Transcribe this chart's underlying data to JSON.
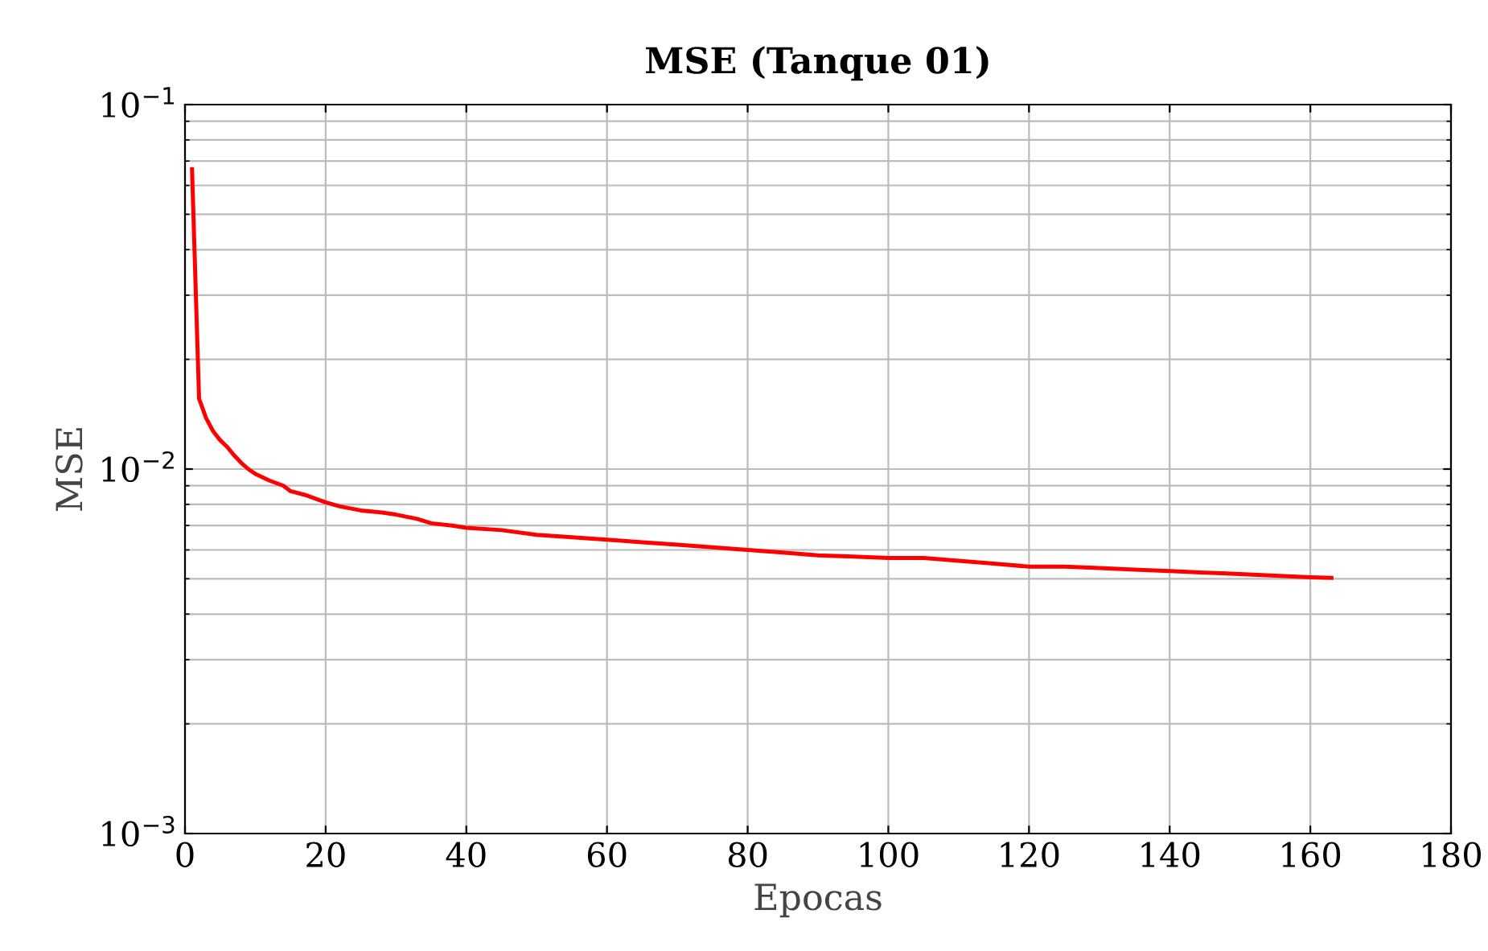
{
  "chart_data": {
    "type": "line",
    "title": "MSE (Tanque 01)",
    "xlabel": "Epocas",
    "ylabel": "MSE",
    "log": "y",
    "grid": true,
    "marker": "none",
    "line_style": "solid",
    "xlim": [
      0,
      180
    ],
    "xticks": [
      0,
      20,
      40,
      60,
      80,
      100,
      120,
      140,
      160,
      180
    ],
    "ylim": [
      0.001,
      0.1
    ],
    "yticks": [
      {
        "value": 0.001,
        "label": "10$^{−3}$"
      },
      {
        "value": 0.01,
        "label": "10$^{−2}$"
      },
      {
        "value": 0.1,
        "label": "10$^{−1}$"
      }
    ],
    "series": [
      {
        "color": "#ff0000",
        "x": [
          1,
          2,
          3,
          4,
          5,
          6,
          7,
          8,
          9,
          10,
          12,
          14,
          15,
          17,
          20,
          22,
          25,
          28,
          30,
          33,
          35,
          38,
          40,
          45,
          50,
          55,
          60,
          65,
          70,
          75,
          80,
          85,
          90,
          95,
          100,
          105,
          110,
          115,
          120,
          125,
          130,
          135,
          140,
          145,
          150,
          155,
          160,
          163
        ],
        "values": [
          0.0665,
          0.0156,
          0.0138,
          0.0127,
          0.012,
          0.0115,
          0.0109,
          0.0104,
          0.01,
          0.0097,
          0.0093,
          0.009,
          0.0087,
          0.0085,
          0.0081,
          0.0079,
          0.0077,
          0.0076,
          0.0075,
          0.0073,
          0.0071,
          0.007,
          0.0069,
          0.0068,
          0.0066,
          0.0065,
          0.0064,
          0.0063,
          0.0062,
          0.0061,
          0.006,
          0.0059,
          0.0058,
          0.00575,
          0.0057,
          0.0057,
          0.0056,
          0.0055,
          0.0054,
          0.0054,
          0.00535,
          0.0053,
          0.00525,
          0.0052,
          0.00515,
          0.0051,
          0.00505,
          0.00503
        ]
      }
    ]
  }
}
